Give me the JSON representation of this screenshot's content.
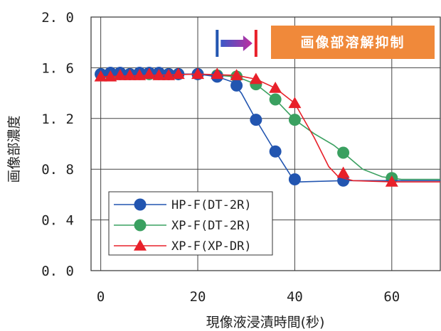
{
  "chart_data": {
    "type": "line",
    "xlabel": "現像液浸漬時間(秒)",
    "ylabel": "画像部濃度",
    "xlim": [
      -2,
      70
    ],
    "ylim": [
      0.0,
      2.0
    ],
    "x_ticks": [
      "0",
      "20",
      "40",
      "60"
    ],
    "y_ticks": [
      "0.0",
      "0.4",
      "0.8",
      "1.2",
      "1.6",
      "2.0"
    ],
    "grid": true,
    "legend_position": "bottom-left",
    "series": [
      {
        "name": "HP-F(DT-2R)",
        "color": "#2255b0",
        "marker": "circle",
        "points": [
          [
            0,
            1.55
          ],
          [
            2,
            1.56
          ],
          [
            4,
            1.56
          ],
          [
            6,
            1.55
          ],
          [
            8,
            1.56
          ],
          [
            10,
            1.56
          ],
          [
            12,
            1.56
          ],
          [
            14,
            1.55
          ],
          [
            16,
            1.55
          ],
          [
            20,
            1.55
          ],
          [
            24,
            1.53
          ],
          [
            28,
            1.46
          ],
          [
            32,
            1.19
          ],
          [
            36,
            0.94
          ],
          [
            40,
            0.72
          ],
          [
            50,
            0.71
          ]
        ],
        "curve": [
          [
            0,
            1.55
          ],
          [
            20,
            1.55
          ],
          [
            24,
            1.53
          ],
          [
            27,
            1.49
          ],
          [
            29,
            1.4
          ],
          [
            32,
            1.19
          ],
          [
            35,
            1.0
          ],
          [
            37.5,
            0.85
          ],
          [
            39.5,
            0.73
          ],
          [
            41,
            0.7
          ],
          [
            50,
            0.71
          ],
          [
            70,
            0.71
          ]
        ]
      },
      {
        "name": "XP-F(DT-2R)",
        "color": "#3aa060",
        "marker": "circle",
        "points": [
          [
            0,
            1.55
          ],
          [
            2,
            1.55
          ],
          [
            4,
            1.55
          ],
          [
            6,
            1.55
          ],
          [
            8,
            1.55
          ],
          [
            10,
            1.55
          ],
          [
            12,
            1.55
          ],
          [
            14,
            1.55
          ],
          [
            16,
            1.55
          ],
          [
            20,
            1.55
          ],
          [
            24,
            1.54
          ],
          [
            28,
            1.53
          ],
          [
            32,
            1.47
          ],
          [
            36,
            1.35
          ],
          [
            40,
            1.19
          ],
          [
            50,
            0.93
          ],
          [
            60,
            0.73
          ]
        ],
        "curve": [
          [
            0,
            1.55
          ],
          [
            20,
            1.55
          ],
          [
            28,
            1.53
          ],
          [
            32,
            1.47
          ],
          [
            36,
            1.35
          ],
          [
            40,
            1.19
          ],
          [
            44,
            1.08
          ],
          [
            48,
            0.99
          ],
          [
            50,
            0.93
          ],
          [
            54,
            0.8
          ],
          [
            58,
            0.74
          ],
          [
            62,
            0.72
          ],
          [
            70,
            0.72
          ]
        ]
      },
      {
        "name": "XP-F(XP-DR)",
        "color": "#e8202a",
        "marker": "triangle",
        "points": [
          [
            0,
            1.53
          ],
          [
            2,
            1.53
          ],
          [
            4,
            1.54
          ],
          [
            6,
            1.54
          ],
          [
            8,
            1.54
          ],
          [
            10,
            1.55
          ],
          [
            12,
            1.54
          ],
          [
            14,
            1.54
          ],
          [
            16,
            1.55
          ],
          [
            20,
            1.55
          ],
          [
            24,
            1.55
          ],
          [
            28,
            1.54
          ],
          [
            32,
            1.51
          ],
          [
            36,
            1.44
          ],
          [
            40,
            1.32
          ],
          [
            50,
            0.77
          ],
          [
            60,
            0.7
          ]
        ],
        "curve": [
          [
            0,
            1.53
          ],
          [
            20,
            1.55
          ],
          [
            28,
            1.54
          ],
          [
            32,
            1.51
          ],
          [
            36,
            1.44
          ],
          [
            40,
            1.32
          ],
          [
            44,
            1.05
          ],
          [
            47,
            0.82
          ],
          [
            49,
            0.74
          ],
          [
            52,
            0.71
          ],
          [
            60,
            0.7
          ],
          [
            70,
            0.7
          ]
        ]
      }
    ],
    "annotation": {
      "text": "画像部溶解抑制",
      "background": "#f0893a",
      "arrow_start_x": 24,
      "arrow_end_x": 32,
      "arrow_color_start": "#2255b0",
      "arrow_color_end": "#e8202a"
    }
  }
}
